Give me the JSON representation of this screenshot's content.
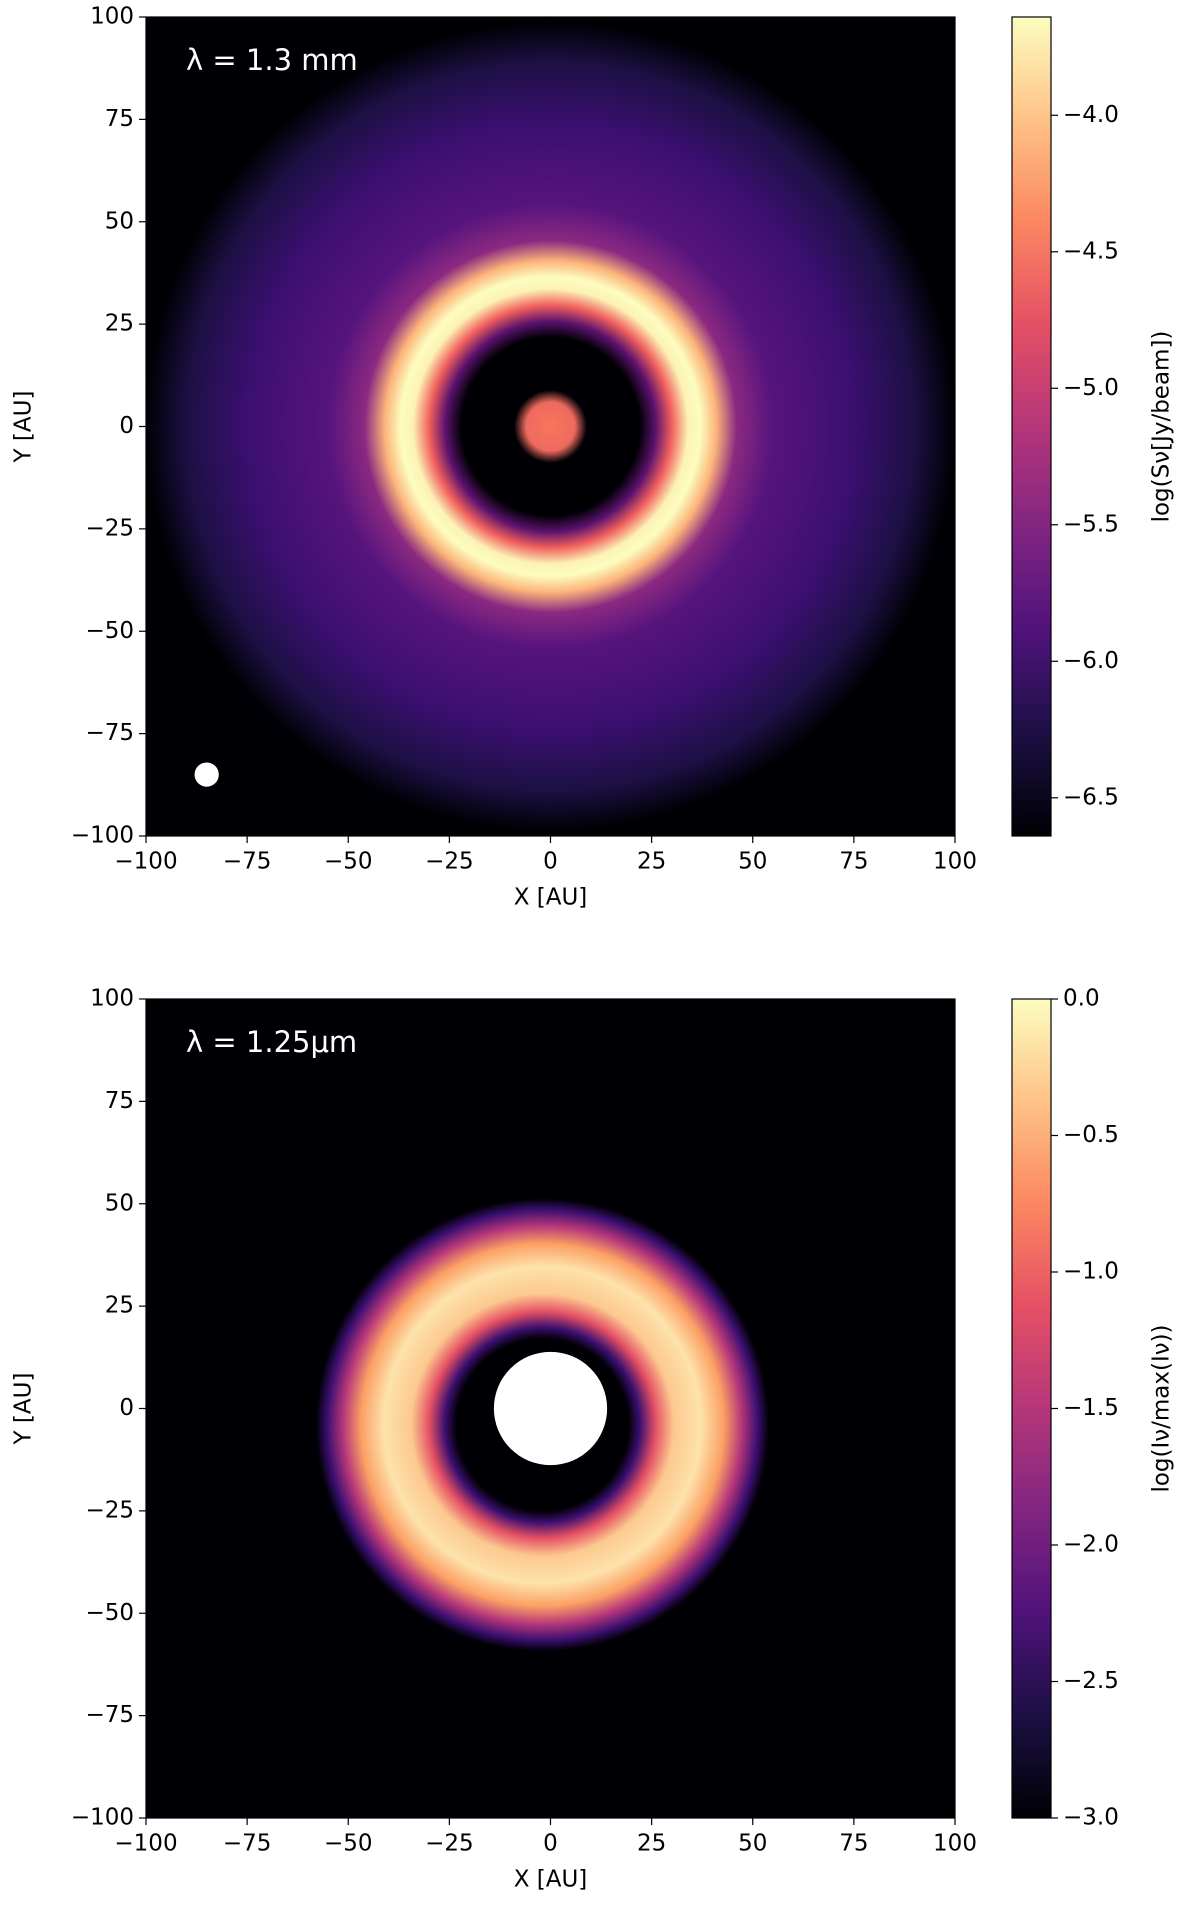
{
  "chart_data": [
    {
      "type": "image",
      "annotation": "λ = 1.3 mm",
      "x_label": "X [AU]",
      "y_label": "Y [AU]",
      "colorbar_label": "log(Sν[Jy/beam])",
      "xlim": [
        -100,
        100
      ],
      "ylim": [
        -100,
        100
      ],
      "xticks": [
        {
          "value": -100,
          "label": "−100"
        },
        {
          "value": -75,
          "label": "−75"
        },
        {
          "value": -50,
          "label": "−50"
        },
        {
          "value": -25,
          "label": "−25"
        },
        0,
        25,
        50,
        75,
        100
      ],
      "yticks": [
        {
          "value": -100,
          "label": "−100"
        },
        {
          "value": -75,
          "label": "−75"
        },
        {
          "value": -50,
          "label": "−50"
        },
        {
          "value": -25,
          "label": "−25"
        },
        0,
        25,
        50,
        75,
        100
      ],
      "clim": [
        -6.64,
        -3.64
      ],
      "cticks": [
        {
          "value": -6.5,
          "label": "−6.5"
        },
        {
          "value": -6.0,
          "label": "−6.0"
        },
        {
          "value": -5.5,
          "label": "−5.5"
        },
        {
          "value": -5.0,
          "label": "−5.0"
        },
        {
          "value": -4.5,
          "label": "−4.5"
        },
        {
          "value": -4.0,
          "label": "−4.0"
        }
      ],
      "colormap": [
        "#000004",
        "#1c1044",
        "#4f127b",
        "#812581",
        "#b5367a",
        "#e55064",
        "#fb8761",
        "#fec287",
        "#fcfdbf"
      ]
    },
    {
      "type": "image",
      "annotation": "λ = 1.25μm",
      "x_label": "X [AU]",
      "y_label": "Y [AU]",
      "colorbar_label": "log(Iν/max(Iν))",
      "xlim": [
        -100,
        100
      ],
      "ylim": [
        -100,
        100
      ],
      "xticks": [
        {
          "value": -100,
          "label": "−100"
        },
        {
          "value": -75,
          "label": "−75"
        },
        {
          "value": -50,
          "label": "−50"
        },
        {
          "value": -25,
          "label": "−25"
        },
        0,
        25,
        50,
        75,
        100
      ],
      "yticks": [
        {
          "value": -100,
          "label": "−100"
        },
        {
          "value": -75,
          "label": "−75"
        },
        {
          "value": -50,
          "label": "−50"
        },
        {
          "value": -25,
          "label": "−25"
        },
        0,
        25,
        50,
        75,
        100
      ],
      "clim": [
        -3,
        0
      ],
      "cticks": [
        {
          "value": -3.0,
          "label": "−3.0"
        },
        {
          "value": -2.5,
          "label": "−2.5"
        },
        {
          "value": -2.0,
          "label": "−2.0"
        },
        {
          "value": -1.5,
          "label": "−1.5"
        },
        {
          "value": -1.0,
          "label": "−1.0"
        },
        {
          "value": -0.5,
          "label": "−0.5"
        },
        {
          "value": 0,
          "label": "0.0"
        }
      ],
      "colormap": [
        "#000004",
        "#1c1044",
        "#4f127b",
        "#812581",
        "#b5367a",
        "#e55064",
        "#fb8761",
        "#fec287",
        "#fcfdbf"
      ]
    }
  ]
}
